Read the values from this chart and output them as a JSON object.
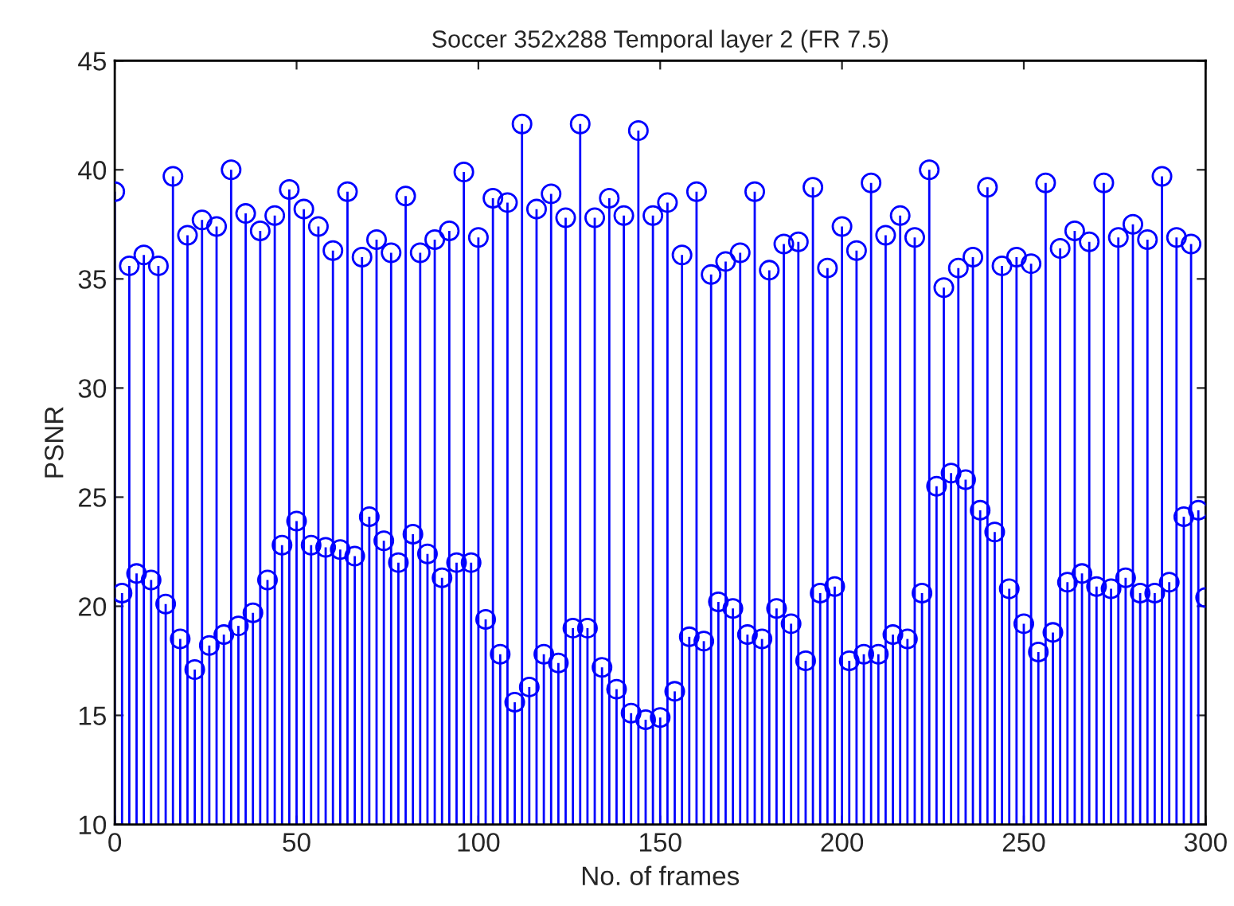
{
  "chart_data": {
    "type": "lollipop",
    "title": "Soccer 352x288 Temporal layer 2 (FR 7.5)",
    "xlabel": "No. of frames",
    "ylabel": "PSNR",
    "xlim": [
      0,
      300
    ],
    "xticks": [
      0,
      50,
      100,
      150,
      200,
      250,
      300
    ],
    "ylim": [
      10,
      45
    ],
    "yticks": [
      10,
      15,
      20,
      25,
      30,
      35,
      40,
      45
    ],
    "marker": "circle",
    "series": [
      {
        "color": "#0000ff",
        "x": [
          0,
          2,
          4,
          6,
          8,
          10,
          12,
          14,
          16,
          18,
          20,
          22,
          24,
          26,
          28,
          30,
          32,
          34,
          36,
          38,
          40,
          42,
          44,
          46,
          48,
          50,
          52,
          54,
          56,
          58,
          60,
          62,
          64,
          66,
          68,
          70,
          72,
          74,
          76,
          78,
          80,
          82,
          84,
          86,
          88,
          90,
          92,
          94,
          96,
          98,
          100,
          102,
          104,
          106,
          108,
          110,
          112,
          114,
          116,
          118,
          120,
          122,
          124,
          126,
          128,
          130,
          132,
          134,
          136,
          138,
          140,
          142,
          144,
          146,
          148,
          150,
          152,
          154,
          156,
          158,
          160,
          162,
          164,
          166,
          168,
          170,
          172,
          174,
          176,
          178,
          180,
          182,
          184,
          186,
          188,
          190,
          192,
          194,
          196,
          198,
          200,
          202,
          204,
          206,
          208,
          210,
          212,
          214,
          216,
          218,
          220,
          222,
          224,
          226,
          228,
          230,
          232,
          234,
          236,
          238,
          240,
          242,
          244,
          246,
          248,
          250,
          252,
          254,
          256,
          258,
          260,
          262,
          264,
          266,
          268,
          270,
          272,
          274,
          276,
          278,
          280,
          282,
          284,
          286,
          288,
          290,
          292,
          294,
          296,
          298,
          300
        ],
        "values": [
          39.0,
          20.6,
          35.6,
          21.5,
          36.1,
          21.2,
          35.6,
          20.1,
          39.7,
          18.5,
          37.0,
          17.1,
          37.7,
          18.2,
          37.4,
          18.7,
          40.0,
          19.1,
          38.0,
          19.7,
          37.2,
          21.2,
          37.9,
          22.8,
          39.1,
          23.9,
          38.2,
          22.8,
          37.4,
          22.7,
          36.3,
          22.6,
          39.0,
          22.3,
          36.0,
          24.1,
          36.8,
          23.0,
          36.2,
          22.0,
          38.8,
          23.3,
          36.2,
          22.4,
          36.8,
          21.3,
          37.2,
          22.0,
          39.9,
          22.0,
          36.9,
          19.4,
          38.7,
          17.8,
          38.5,
          15.6,
          42.1,
          16.3,
          38.2,
          17.8,
          38.9,
          17.4,
          37.8,
          19.0,
          42.1,
          19.0,
          37.8,
          17.2,
          38.7,
          16.2,
          37.9,
          15.1,
          41.8,
          14.8,
          37.9,
          14.9,
          38.5,
          16.1,
          36.1,
          18.6,
          39.0,
          18.4,
          35.2,
          20.2,
          35.8,
          19.9,
          36.2,
          18.7,
          39.0,
          18.5,
          35.4,
          19.9,
          36.6,
          19.2,
          36.7,
          17.5,
          39.2,
          20.6,
          35.5,
          20.9,
          37.4,
          17.5,
          36.3,
          17.8,
          39.4,
          17.8,
          37.0,
          18.7,
          37.9,
          18.5,
          36.9,
          20.6,
          40.0,
          25.5,
          34.6,
          26.1,
          35.5,
          25.8,
          36.0,
          24.4,
          39.2,
          23.4,
          35.6,
          20.8,
          36.0,
          19.2,
          35.7,
          17.9,
          39.4,
          18.8,
          36.4,
          21.1,
          37.2,
          21.5,
          36.7,
          20.9,
          39.4,
          20.8,
          36.9,
          21.3,
          37.5,
          20.6,
          36.8,
          20.6,
          39.7,
          21.1,
          36.9,
          24.1,
          36.6,
          24.4,
          20.4
        ]
      }
    ]
  }
}
